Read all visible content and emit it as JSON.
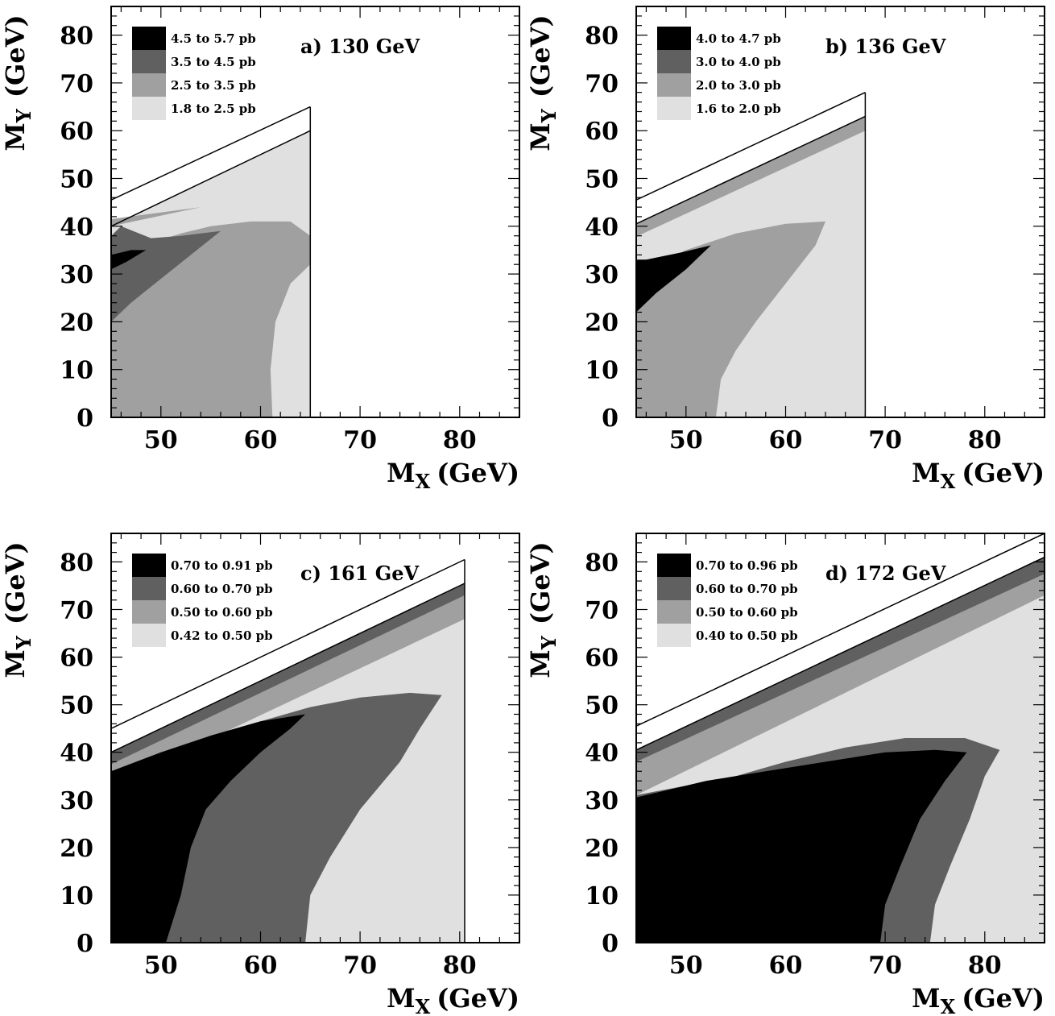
{
  "colors": {
    "level1": "#e0e0e0",
    "level2": "#a0a0a0",
    "level3": "#606060",
    "level4": "#000000",
    "frame": "#000000",
    "background": "#ffffff"
  },
  "chart_data": [
    {
      "type": "contour",
      "title": "a) 130 GeV",
      "xlabel": "M",
      "xlabel_sub": "X",
      "xlabel_unit": "(GeV)",
      "ylabel": "M",
      "ylabel_sub": "Y",
      "ylabel_unit": "(GeV)",
      "xlim": [
        45,
        86
      ],
      "ylim": [
        0,
        86
      ],
      "xticks": [
        50,
        60,
        70,
        80
      ],
      "yticks": [
        0,
        10,
        20,
        30,
        40,
        50,
        60,
        70,
        80
      ],
      "legend": [
        "4.5 to 5.7 pb",
        "3.5 to 4.5 pb",
        "2.5 to 3.5 pb",
        "1.8 to 2.5 pb"
      ],
      "boundary_lines": [
        [
          [
            45,
            45.5
          ],
          [
            65,
            65
          ]
        ],
        [
          [
            45,
            40
          ],
          [
            65,
            60
          ]
        ]
      ],
      "regions": [
        {
          "level": 1,
          "points": [
            [
              45,
              0
            ],
            [
              65,
              0
            ],
            [
              65,
              60
            ],
            [
              45,
              40
            ]
          ]
        },
        {
          "level": 2,
          "points": [
            [
              45,
              0
            ],
            [
              61.2,
              0
            ],
            [
              61,
              10
            ],
            [
              61.5,
              20
            ],
            [
              63,
              28
            ],
            [
              65,
              32
            ],
            [
              65,
              38
            ],
            [
              63,
              41
            ],
            [
              59,
              41
            ],
            [
              55,
              40
            ],
            [
              52,
              38.5
            ],
            [
              49,
              36.5
            ],
            [
              46.5,
              38
            ],
            [
              45,
              38
            ]
          ]
        },
        {
          "level": 2,
          "points": [
            [
              45,
              40
            ],
            [
              54,
              44
            ],
            [
              45,
              41.5
            ]
          ]
        },
        {
          "level": 3,
          "points": [
            [
              45,
              20
            ],
            [
              47,
              24
            ],
            [
              50,
              29
            ],
            [
              53,
              34
            ],
            [
              56,
              39
            ],
            [
              52,
              38
            ],
            [
              49,
              37.5
            ],
            [
              46,
              40
            ],
            [
              45,
              38
            ]
          ]
        },
        {
          "level": 4,
          "points": [
            [
              45,
              31
            ],
            [
              46.5,
              32.5
            ],
            [
              48.5,
              35
            ],
            [
              47,
              35
            ],
            [
              45,
              34
            ]
          ]
        }
      ]
    },
    {
      "type": "contour",
      "title": "b) 136 GeV",
      "xlabel": "M",
      "xlabel_sub": "X",
      "xlabel_unit": "(GeV)",
      "ylabel": "M",
      "ylabel_sub": "Y",
      "ylabel_unit": "(GeV)",
      "xlim": [
        45,
        86
      ],
      "ylim": [
        0,
        86
      ],
      "xticks": [
        50,
        60,
        70,
        80
      ],
      "yticks": [
        0,
        10,
        20,
        30,
        40,
        50,
        60,
        70,
        80
      ],
      "legend": [
        "4.0 to 4.7 pb",
        "3.0 to 4.0 pb",
        "2.0 to 3.0 pb",
        "1.6 to 2.0 pb"
      ],
      "boundary_lines": [
        [
          [
            45,
            45.5
          ],
          [
            68,
            68
          ]
        ],
        [
          [
            45,
            40.5
          ],
          [
            68,
            63
          ]
        ]
      ],
      "regions": [
        {
          "level": 1,
          "points": [
            [
              45,
              0
            ],
            [
              68,
              0
            ],
            [
              68,
              63
            ],
            [
              45,
              40.5
            ]
          ]
        },
        {
          "level": 2,
          "points": [
            [
              45,
              40.5
            ],
            [
              68,
              63
            ],
            [
              68,
              60
            ],
            [
              45,
              37.8
            ]
          ]
        },
        {
          "level": 2,
          "points": [
            [
              45,
              0
            ],
            [
              53,
              0
            ],
            [
              53.5,
              8
            ],
            [
              55,
              14
            ],
            [
              57,
              20
            ],
            [
              60,
              28
            ],
            [
              63,
              36
            ],
            [
              64,
              41
            ],
            [
              60,
              40.5
            ],
            [
              55,
              38.5
            ],
            [
              50,
              35
            ],
            [
              48,
              33
            ],
            [
              45,
              33
            ]
          ]
        },
        {
          "level": 4,
          "points": [
            [
              45,
              22
            ],
            [
              47,
              26
            ],
            [
              50,
              31
            ],
            [
              52.5,
              36
            ],
            [
              49.5,
              34.5
            ],
            [
              46,
              33
            ],
            [
              45,
              33
            ]
          ]
        }
      ]
    },
    {
      "type": "contour",
      "title": "c) 161 GeV",
      "xlabel": "M",
      "xlabel_sub": "X",
      "xlabel_unit": "(GeV)",
      "ylabel": "M",
      "ylabel_sub": "Y",
      "ylabel_unit": "(GeV)",
      "xlim": [
        45,
        86
      ],
      "ylim": [
        0,
        86
      ],
      "xticks": [
        50,
        60,
        70,
        80
      ],
      "yticks": [
        0,
        10,
        20,
        30,
        40,
        50,
        60,
        70,
        80
      ],
      "legend": [
        "0.70 to 0.91 pb",
        "0.60 to 0.70 pb",
        "0.50 to 0.60 pb",
        "0.42 to 0.50 pb"
      ],
      "boundary_lines": [
        [
          [
            45,
            45
          ],
          [
            80.5,
            80.5
          ]
        ],
        [
          [
            45,
            40
          ],
          [
            80.5,
            75.5
          ]
        ]
      ],
      "regions": [
        {
          "level": 1,
          "points": [
            [
              45,
              0
            ],
            [
              80.5,
              0
            ],
            [
              80.5,
              75.5
            ],
            [
              45,
              40
            ]
          ]
        },
        {
          "level": 2,
          "points": [
            [
              45,
              40
            ],
            [
              80.5,
              75.5
            ],
            [
              80.5,
              68
            ],
            [
              45,
              33
            ]
          ]
        },
        {
          "level": 3,
          "points": [
            [
              45,
              40
            ],
            [
              80.5,
              75.5
            ],
            [
              80.5,
              73
            ],
            [
              45,
              37.5
            ]
          ]
        },
        {
          "level": 3,
          "points": [
            [
              45,
              0
            ],
            [
              64.5,
              0
            ],
            [
              65,
              10
            ],
            [
              67,
              18
            ],
            [
              70,
              28
            ],
            [
              74,
              38
            ],
            [
              76,
              45
            ],
            [
              78.2,
              52
            ],
            [
              75,
              52.5
            ],
            [
              70,
              51.5
            ],
            [
              65,
              49.5
            ],
            [
              60,
              46.5
            ],
            [
              55,
              43.5
            ],
            [
              50,
              39
            ],
            [
              45,
              36
            ]
          ]
        },
        {
          "level": 4,
          "points": [
            [
              45,
              0
            ],
            [
              50.5,
              0
            ],
            [
              52,
              10
            ],
            [
              53,
              20
            ],
            [
              54.5,
              28
            ],
            [
              57,
              34
            ],
            [
              60,
              40
            ],
            [
              63,
              45
            ],
            [
              64.5,
              48
            ],
            [
              60,
              46.5
            ],
            [
              55,
              43.5
            ],
            [
              50,
              40
            ],
            [
              45,
              36
            ]
          ]
        }
      ]
    },
    {
      "type": "contour",
      "title": "d) 172 GeV",
      "xlabel": "M",
      "xlabel_sub": "X",
      "xlabel_unit": "(GeV)",
      "ylabel": "M",
      "ylabel_sub": "Y",
      "ylabel_unit": "(GeV)",
      "xlim": [
        45,
        86
      ],
      "ylim": [
        0,
        86
      ],
      "xticks": [
        50,
        60,
        70,
        80
      ],
      "yticks": [
        0,
        10,
        20,
        30,
        40,
        50,
        60,
        70,
        80
      ],
      "legend": [
        "0.70 to 0.96 pb",
        "0.60 to 0.70 pb",
        "0.50 to 0.60 pb",
        "0.40 to 0.50 pb"
      ],
      "boundary_lines": [
        [
          [
            45,
            45.5
          ],
          [
            86,
            86
          ]
        ],
        [
          [
            45,
            40.5
          ],
          [
            86,
            81
          ]
        ]
      ],
      "regions": [
        {
          "level": 1,
          "points": [
            [
              45,
              0
            ],
            [
              86,
              0
            ],
            [
              86,
              81
            ],
            [
              45,
              40.5
            ]
          ]
        },
        {
          "level": 2,
          "points": [
            [
              45,
              40.5
            ],
            [
              86,
              81
            ],
            [
              86,
              73
            ],
            [
              45,
              31
            ]
          ]
        },
        {
          "level": 3,
          "points": [
            [
              45,
              40.5
            ],
            [
              86,
              81
            ],
            [
              86,
              77.5
            ],
            [
              45,
              38
            ]
          ]
        },
        {
          "level": 3,
          "points": [
            [
              45,
              0
            ],
            [
              74.5,
              0
            ],
            [
              75,
              8
            ],
            [
              76.5,
              16
            ],
            [
              78.5,
              26
            ],
            [
              80,
              35
            ],
            [
              81.5,
              40.5
            ],
            [
              78,
              43
            ],
            [
              72,
              43
            ],
            [
              66,
              41
            ],
            [
              60,
              38
            ],
            [
              55,
              35
            ],
            [
              50,
              33
            ],
            [
              45,
              31
            ]
          ]
        },
        {
          "level": 4,
          "points": [
            [
              45,
              0
            ],
            [
              69.5,
              0
            ],
            [
              70,
              8
            ],
            [
              71.5,
              16
            ],
            [
              73.5,
              26
            ],
            [
              76,
              34
            ],
            [
              78.2,
              40
            ],
            [
              75,
              40.5
            ],
            [
              70,
              40
            ],
            [
              64,
              38
            ],
            [
              58,
              36
            ],
            [
              52,
              34
            ],
            [
              48,
              32
            ],
            [
              45,
              30.5
            ]
          ]
        }
      ]
    }
  ]
}
